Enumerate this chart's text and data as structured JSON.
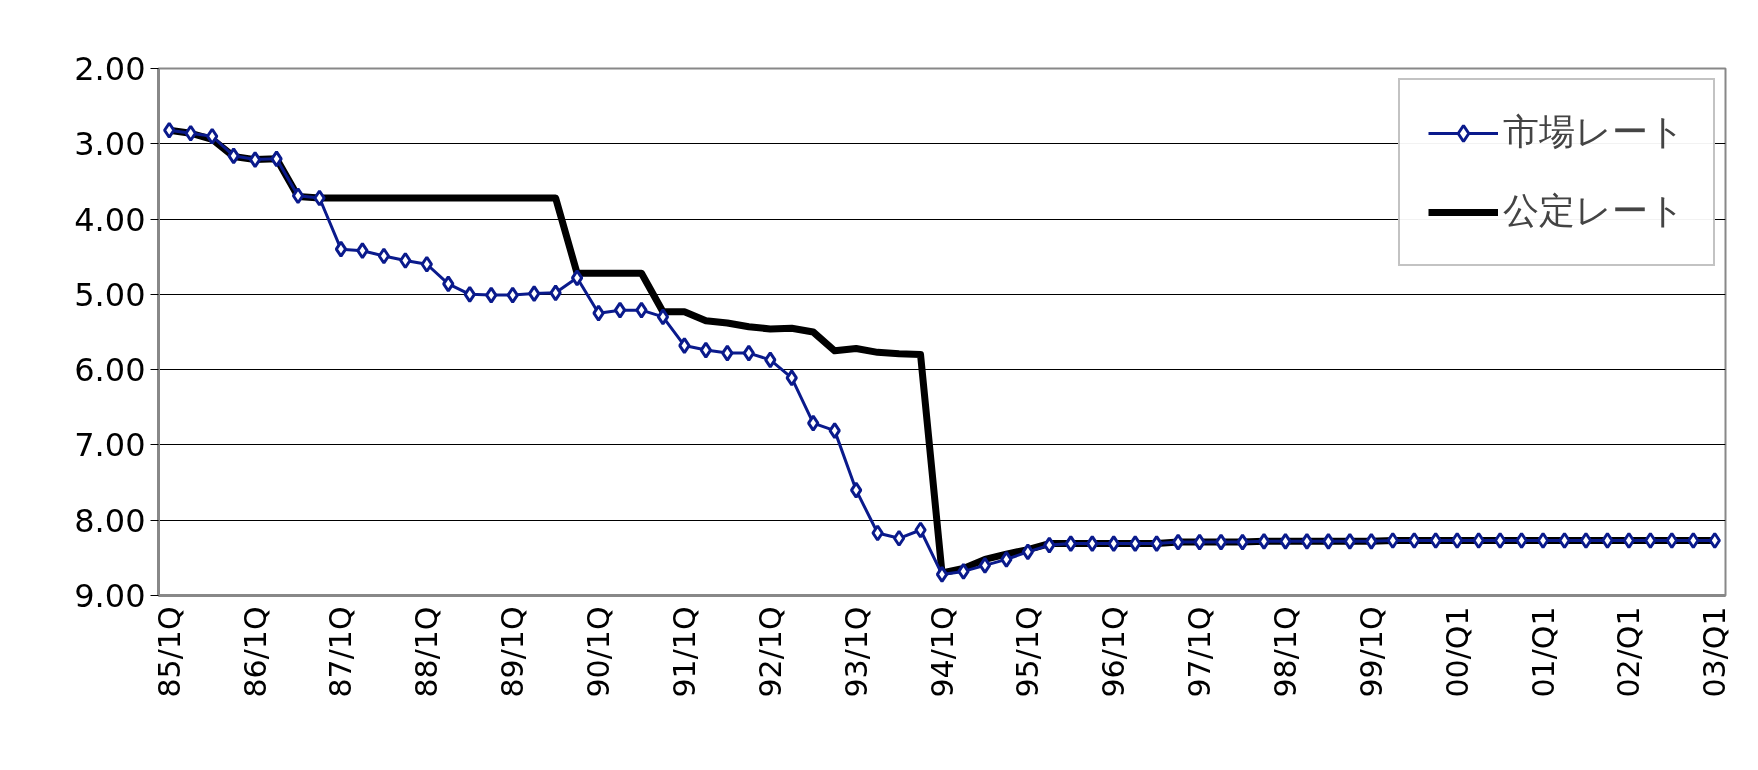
{
  "chart_data": {
    "type": "line",
    "categories": [
      "85/1Q",
      null,
      null,
      null,
      "86/1Q",
      null,
      null,
      null,
      "87/1Q",
      null,
      null,
      null,
      "88/1Q",
      null,
      null,
      null,
      "89/1Q",
      null,
      null,
      null,
      "90/1Q",
      null,
      null,
      null,
      "91/1Q",
      null,
      null,
      null,
      "92/1Q",
      null,
      null,
      null,
      "93/1Q",
      null,
      null,
      null,
      "94/1Q",
      null,
      null,
      null,
      "95/1Q",
      null,
      null,
      null,
      "96/1Q",
      null,
      null,
      null,
      "97/1Q",
      null,
      null,
      null,
      "98/1Q",
      null,
      null,
      null,
      "99/1Q",
      null,
      null,
      null,
      "00/Q1",
      null,
      null,
      null,
      "01/Q1",
      null,
      null,
      null,
      "02/Q1",
      null,
      null,
      null,
      "03/Q1"
    ],
    "series": [
      {
        "name": "市場レート",
        "color": "#0a1a8c",
        "marker": "diamond",
        "values": [
          2.82,
          2.86,
          2.9,
          3.16,
          3.21,
          3.2,
          3.69,
          3.72,
          4.4,
          4.42,
          4.49,
          4.55,
          4.6,
          4.86,
          5.0,
          5.01,
          5.01,
          4.99,
          4.98,
          4.78,
          5.25,
          5.21,
          5.21,
          5.3,
          5.68,
          5.74,
          5.78,
          5.78,
          5.87,
          6.11,
          6.71,
          6.81,
          7.6,
          8.17,
          8.24,
          8.13,
          8.72,
          8.68,
          8.6,
          8.52,
          8.42,
          8.33,
          8.31,
          8.31,
          8.31,
          8.31,
          8.31,
          8.29,
          8.29,
          8.29,
          8.29,
          8.28,
          8.28,
          8.28,
          8.28,
          8.28,
          8.28,
          8.27,
          8.27,
          8.27,
          8.27,
          8.27,
          8.27,
          8.27,
          8.27,
          8.27,
          8.27,
          8.27,
          8.27,
          8.27,
          8.27,
          8.27,
          8.27
        ]
      },
      {
        "name": "公定レート",
        "color": "#000000",
        "marker": "none",
        "values": [
          2.82,
          2.86,
          2.94,
          3.17,
          3.21,
          3.2,
          3.7,
          3.72,
          3.72,
          3.72,
          3.72,
          3.72,
          3.72,
          3.72,
          3.72,
          3.72,
          3.72,
          3.72,
          3.72,
          4.72,
          4.72,
          4.72,
          4.72,
          5.23,
          5.23,
          5.35,
          5.38,
          5.43,
          5.46,
          5.45,
          5.5,
          5.75,
          5.72,
          5.77,
          5.79,
          5.8,
          8.7,
          8.64,
          8.52,
          8.45,
          8.39,
          8.31,
          8.31,
          8.31,
          8.31,
          8.31,
          8.31,
          8.29,
          8.29,
          8.29,
          8.29,
          8.28,
          8.28,
          8.28,
          8.28,
          8.28,
          8.28,
          8.27,
          8.27,
          8.27,
          8.27,
          8.27,
          8.27,
          8.27,
          8.27,
          8.27,
          8.27,
          8.27,
          8.27,
          8.27,
          8.27,
          8.27,
          8.27
        ]
      }
    ],
    "ylim": [
      9,
      2
    ],
    "yticks": [
      {
        "value": 2,
        "label": "2.00"
      },
      {
        "value": 3,
        "label": "3.00"
      },
      {
        "value": 4,
        "label": "4.00"
      },
      {
        "value": 5,
        "label": "5.00"
      },
      {
        "value": 6,
        "label": "6.00"
      },
      {
        "value": 7,
        "label": "7.00"
      },
      {
        "value": 8,
        "label": "8.00"
      },
      {
        "value": 9,
        "label": "9.00"
      }
    ],
    "grid": "y",
    "legend": "top right"
  }
}
